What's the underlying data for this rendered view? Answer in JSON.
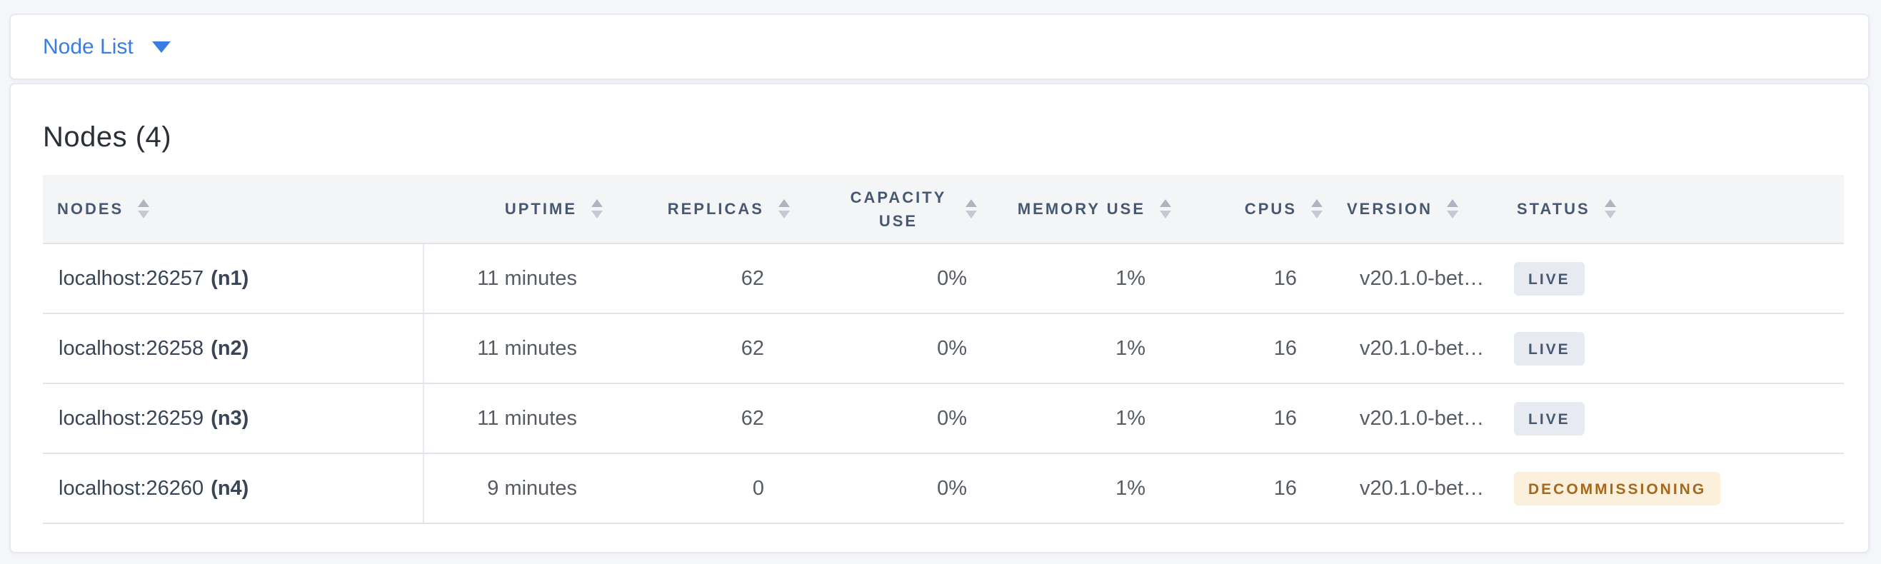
{
  "view_selector": {
    "label": "Node List",
    "icon": "chevron-down-icon"
  },
  "page": {
    "title": "Nodes (4)"
  },
  "colors": {
    "accent_blue": "#3b7ce3",
    "header_text": "#475872",
    "live_badge_bg": "#e7eaf1",
    "live_badge_text": "#475872",
    "decommissioning_badge_bg": "#fbf0dc",
    "decommissioning_badge_text": "#a5681e"
  },
  "table": {
    "columns": [
      {
        "label": "NODES",
        "sortable": true
      },
      {
        "label": "UPTIME",
        "sortable": true
      },
      {
        "label": "REPLICAS",
        "sortable": true
      },
      {
        "label": "CAPACITY USE",
        "sortable": true
      },
      {
        "label": "MEMORY USE",
        "sortable": true
      },
      {
        "label": "CPUS",
        "sortable": true
      },
      {
        "label": "VERSION",
        "sortable": true
      },
      {
        "label": "STATUS",
        "sortable": true
      }
    ],
    "rows": [
      {
        "address": "localhost:26257",
        "node_id": "(n1)",
        "uptime": "11 minutes",
        "replicas": "62",
        "capacity_use": "0%",
        "memory_use": "1%",
        "cpus": "16",
        "version": "v20.1.0-bet…",
        "status": "LIVE",
        "status_variant": "live"
      },
      {
        "address": "localhost:26258",
        "node_id": "(n2)",
        "uptime": "11 minutes",
        "replicas": "62",
        "capacity_use": "0%",
        "memory_use": "1%",
        "cpus": "16",
        "version": "v20.1.0-bet…",
        "status": "LIVE",
        "status_variant": "live"
      },
      {
        "address": "localhost:26259",
        "node_id": "(n3)",
        "uptime": "11 minutes",
        "replicas": "62",
        "capacity_use": "0%",
        "memory_use": "1%",
        "cpus": "16",
        "version": "v20.1.0-bet…",
        "status": "LIVE",
        "status_variant": "live"
      },
      {
        "address": "localhost:26260",
        "node_id": "(n4)",
        "uptime": "9 minutes",
        "replicas": "0",
        "capacity_use": "0%",
        "memory_use": "1%",
        "cpus": "16",
        "version": "v20.1.0-bet…",
        "status": "DECOMMISSIONING",
        "status_variant": "decommissioning"
      }
    ]
  }
}
